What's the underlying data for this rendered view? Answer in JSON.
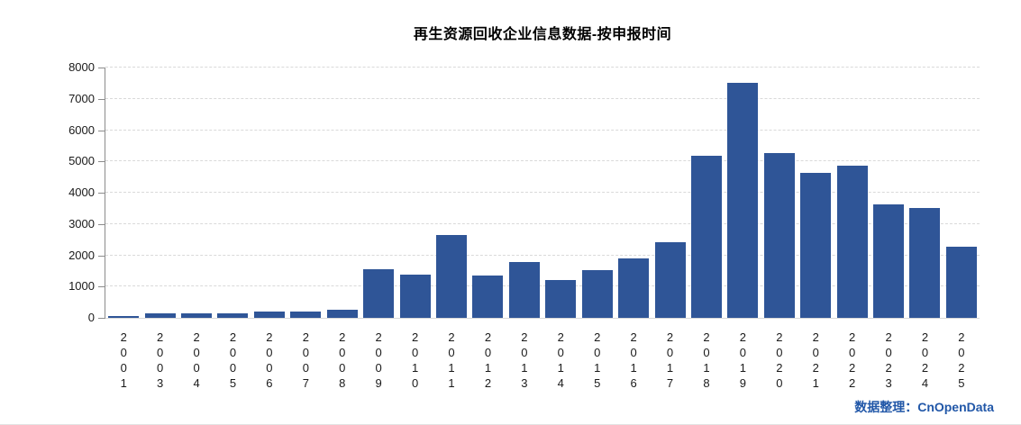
{
  "title": "再生资源回收企业信息数据-按申报时间",
  "attribution": {
    "label": "数据整理：",
    "brand": "CnOpenData"
  },
  "colors": {
    "bar": "#2f5597",
    "grid": "#d9d9d9",
    "axis": "#8c8c8c",
    "attribution_text": "#2157a8",
    "title_text": "#000000",
    "background": "#ffffff"
  },
  "chart_data": {
    "type": "bar",
    "title": "再生资源回收企业信息数据-按申报时间",
    "categories": [
      "2001",
      "2003",
      "2004",
      "2005",
      "2006",
      "2007",
      "2008",
      "2009",
      "2010",
      "2011",
      "2012",
      "2013",
      "2014",
      "2015",
      "2016",
      "2017",
      "2018",
      "2019",
      "2020",
      "2021",
      "2022",
      "2023",
      "2024",
      "2025"
    ],
    "values": [
      60,
      150,
      150,
      150,
      190,
      215,
      260,
      1560,
      1390,
      2640,
      1340,
      1780,
      1220,
      1540,
      1890,
      2430,
      5190,
      7500,
      5280,
      4620,
      4870,
      3630,
      3510,
      2270
    ],
    "xlabel": "",
    "ylabel": "",
    "ylim": [
      0,
      8000
    ],
    "ytick_step": 1000,
    "ytick_labels": [
      "0",
      "1000",
      "2000",
      "3000",
      "4000",
      "5000",
      "6000",
      "7000",
      "8000"
    ],
    "grid": "horizontal-dashed",
    "legend": "none",
    "x_label_orientation": "vertical-stacked"
  }
}
